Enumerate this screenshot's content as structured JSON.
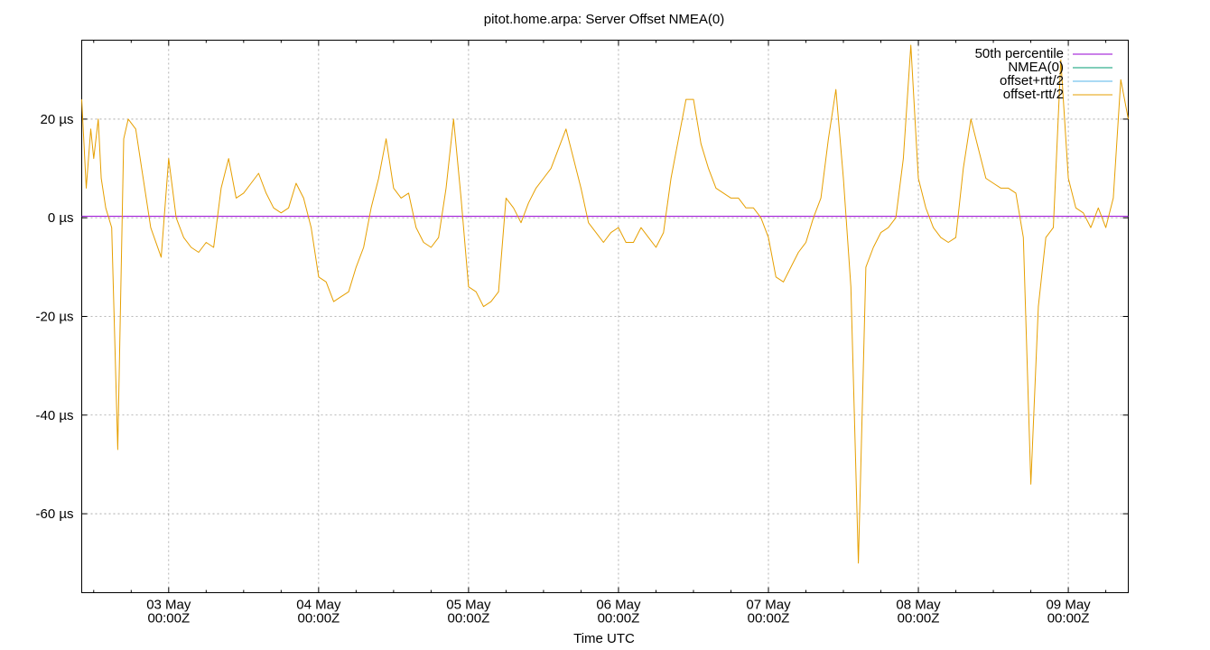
{
  "chart_data": {
    "type": "line",
    "title": "pitot.home.arpa: Server Offset NMEA(0)",
    "xlabel": "Time UTC",
    "ylabel": "",
    "x_range_days": [
      -0.58,
      6.4
    ],
    "ylim": [
      -76,
      36
    ],
    "grid": true,
    "legend_placement": "top-right",
    "y_ticks": [
      {
        "value": 20,
        "label": "20 µs"
      },
      {
        "value": 0,
        "label": "0 µs"
      },
      {
        "value": -20,
        "label": "-20 µs"
      },
      {
        "value": -40,
        "label": "-40 µs"
      },
      {
        "value": -60,
        "label": "-60 µs"
      }
    ],
    "x_ticks": [
      {
        "value": 0,
        "line1": "03 May",
        "line2": "00:00Z"
      },
      {
        "value": 1,
        "line1": "04 May",
        "line2": "00:00Z"
      },
      {
        "value": 2,
        "line1": "05 May",
        "line2": "00:00Z"
      },
      {
        "value": 3,
        "line1": "06 May",
        "line2": "00:00Z"
      },
      {
        "value": 4,
        "line1": "07 May",
        "line2": "00:00Z"
      },
      {
        "value": 5,
        "line1": "08 May",
        "line2": "00:00Z"
      },
      {
        "value": 6,
        "line1": "09 May",
        "line2": "00:00Z"
      }
    ],
    "series": [
      {
        "name": "50th percentile",
        "color": "#9400d3",
        "type": "hline",
        "value": 0.3
      },
      {
        "name": "NMEA(0)",
        "color": "#009e73",
        "values": []
      },
      {
        "name": "offset+rtt/2",
        "color": "#56b4e9",
        "values": []
      },
      {
        "name": "offset-rtt/2",
        "color": "#e69f00",
        "x": [
          -0.58,
          -0.55,
          -0.52,
          -0.5,
          -0.47,
          -0.45,
          -0.42,
          -0.38,
          -0.34,
          -0.3,
          -0.27,
          -0.22,
          -0.18,
          -0.12,
          -0.05,
          0.0,
          0.05,
          0.1,
          0.15,
          0.2,
          0.25,
          0.3,
          0.35,
          0.4,
          0.45,
          0.5,
          0.55,
          0.6,
          0.65,
          0.7,
          0.75,
          0.8,
          0.85,
          0.9,
          0.95,
          1.0,
          1.05,
          1.1,
          1.15,
          1.2,
          1.25,
          1.3,
          1.35,
          1.4,
          1.45,
          1.5,
          1.55,
          1.6,
          1.65,
          1.7,
          1.75,
          1.8,
          1.85,
          1.9,
          1.95,
          2.0,
          2.05,
          2.1,
          2.15,
          2.2,
          2.25,
          2.3,
          2.35,
          2.4,
          2.45,
          2.5,
          2.55,
          2.6,
          2.65,
          2.7,
          2.75,
          2.8,
          2.85,
          2.9,
          2.95,
          3.0,
          3.05,
          3.1,
          3.15,
          3.2,
          3.25,
          3.3,
          3.35,
          3.4,
          3.45,
          3.5,
          3.55,
          3.6,
          3.65,
          3.7,
          3.75,
          3.8,
          3.85,
          3.9,
          3.95,
          4.0,
          4.05,
          4.1,
          4.15,
          4.2,
          4.25,
          4.3,
          4.35,
          4.4,
          4.45,
          4.5,
          4.55,
          4.6,
          4.65,
          4.7,
          4.75,
          4.8,
          4.85,
          4.9,
          4.95,
          5.0,
          5.05,
          5.1,
          5.15,
          5.2,
          5.25,
          5.3,
          5.35,
          5.4,
          5.45,
          5.5,
          5.55,
          5.6,
          5.65,
          5.7,
          5.75,
          5.8,
          5.85,
          5.9,
          5.95,
          6.0,
          6.05,
          6.1,
          6.15,
          6.2,
          6.25,
          6.3,
          6.35,
          6.4
        ],
        "values": [
          24,
          6,
          18,
          12,
          20,
          8,
          2,
          -2,
          -47,
          16,
          20,
          18,
          10,
          -2,
          -8,
          12,
          0,
          -4,
          -6,
          -7,
          -5,
          -6,
          6,
          12,
          4,
          5,
          7,
          9,
          5,
          2,
          1,
          2,
          7,
          4,
          -2,
          -12,
          -13,
          -17,
          -16,
          -15,
          -10,
          -6,
          2,
          8,
          16,
          6,
          4,
          5,
          -2,
          -5,
          -6,
          -4,
          6,
          20,
          4,
          -14,
          -15,
          -18,
          -17,
          -15,
          4,
          2,
          -1,
          3,
          6,
          8,
          10,
          14,
          18,
          12,
          6,
          -1,
          -3,
          -5,
          -3,
          -2,
          -5,
          -5,
          -2,
          -4,
          -6,
          -3,
          8,
          16,
          24,
          24,
          15,
          10,
          6,
          5,
          4,
          4,
          2,
          2,
          0,
          -4,
          -12,
          -13,
          -10,
          -7,
          -5,
          0,
          4,
          16,
          26,
          8,
          -14,
          -70,
          -10,
          -6,
          -3,
          -2,
          0,
          12,
          35,
          8,
          2,
          -2,
          -4,
          -5,
          -4,
          10,
          20,
          14,
          8,
          7,
          6,
          6,
          5,
          -4,
          -54,
          -18,
          -4,
          -2,
          32,
          8,
          2,
          1,
          -2,
          2,
          -2,
          4,
          28,
          20
        ]
      }
    ]
  }
}
